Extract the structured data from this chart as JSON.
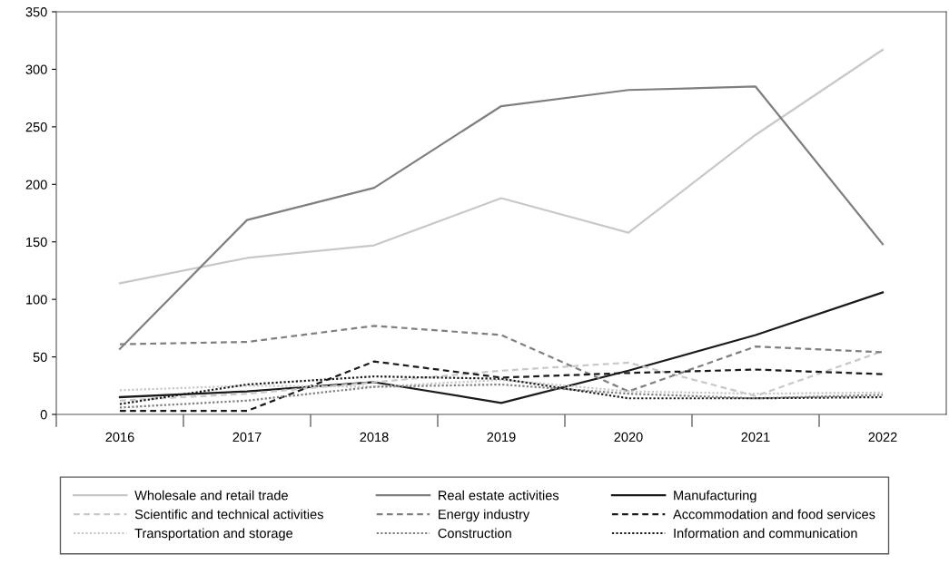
{
  "chart_data": {
    "type": "line",
    "categories": [
      "2016",
      "2017",
      "2018",
      "2019",
      "2020",
      "2021",
      "2022"
    ],
    "ylim": [
      0,
      350
    ],
    "yticks": [
      0,
      50,
      100,
      150,
      200,
      250,
      300,
      350
    ],
    "grid": false,
    "legend": "bottom",
    "marker": "none",
    "series": [
      {
        "name": "Wholesale and retail trade",
        "color": "#c8c8c8",
        "line_style": "solid",
        "values": [
          114,
          136,
          147,
          188,
          158,
          243,
          317
        ]
      },
      {
        "name": "Real estate activities",
        "color": "#7f7f7f",
        "line_style": "solid",
        "values": [
          57,
          169,
          197,
          268,
          282,
          285,
          148
        ]
      },
      {
        "name": "Manufacturing",
        "color": "#1a1a1a",
        "line_style": "solid",
        "values": [
          15,
          20,
          28,
          10,
          38,
          69,
          106
        ]
      },
      {
        "name": "Scientific and technical activities",
        "color": "#c8c8c8",
        "line_style": "dashed",
        "values": [
          12,
          18,
          28,
          38,
          45,
          16,
          55
        ]
      },
      {
        "name": "Energy industry",
        "color": "#7f7f7f",
        "line_style": "dashed",
        "values": [
          61,
          63,
          77,
          69,
          20,
          59,
          54
        ]
      },
      {
        "name": "Accommodation and food services",
        "color": "#1a1a1a",
        "line_style": "dashed",
        "values": [
          3,
          3,
          46,
          32,
          36,
          39,
          35
        ]
      },
      {
        "name": "Transportation and storage",
        "color": "#c8c8c8",
        "line_style": "dotted",
        "values": [
          21,
          25,
          24,
          30,
          20,
          18,
          19
        ]
      },
      {
        "name": "Construction",
        "color": "#7f7f7f",
        "line_style": "dotted",
        "values": [
          6,
          12,
          24,
          26,
          18,
          14,
          17
        ]
      },
      {
        "name": "Information and communication",
        "color": "#1a1a1a",
        "line_style": "dotted",
        "values": [
          9,
          26,
          33,
          31,
          14,
          14,
          15
        ]
      }
    ]
  }
}
